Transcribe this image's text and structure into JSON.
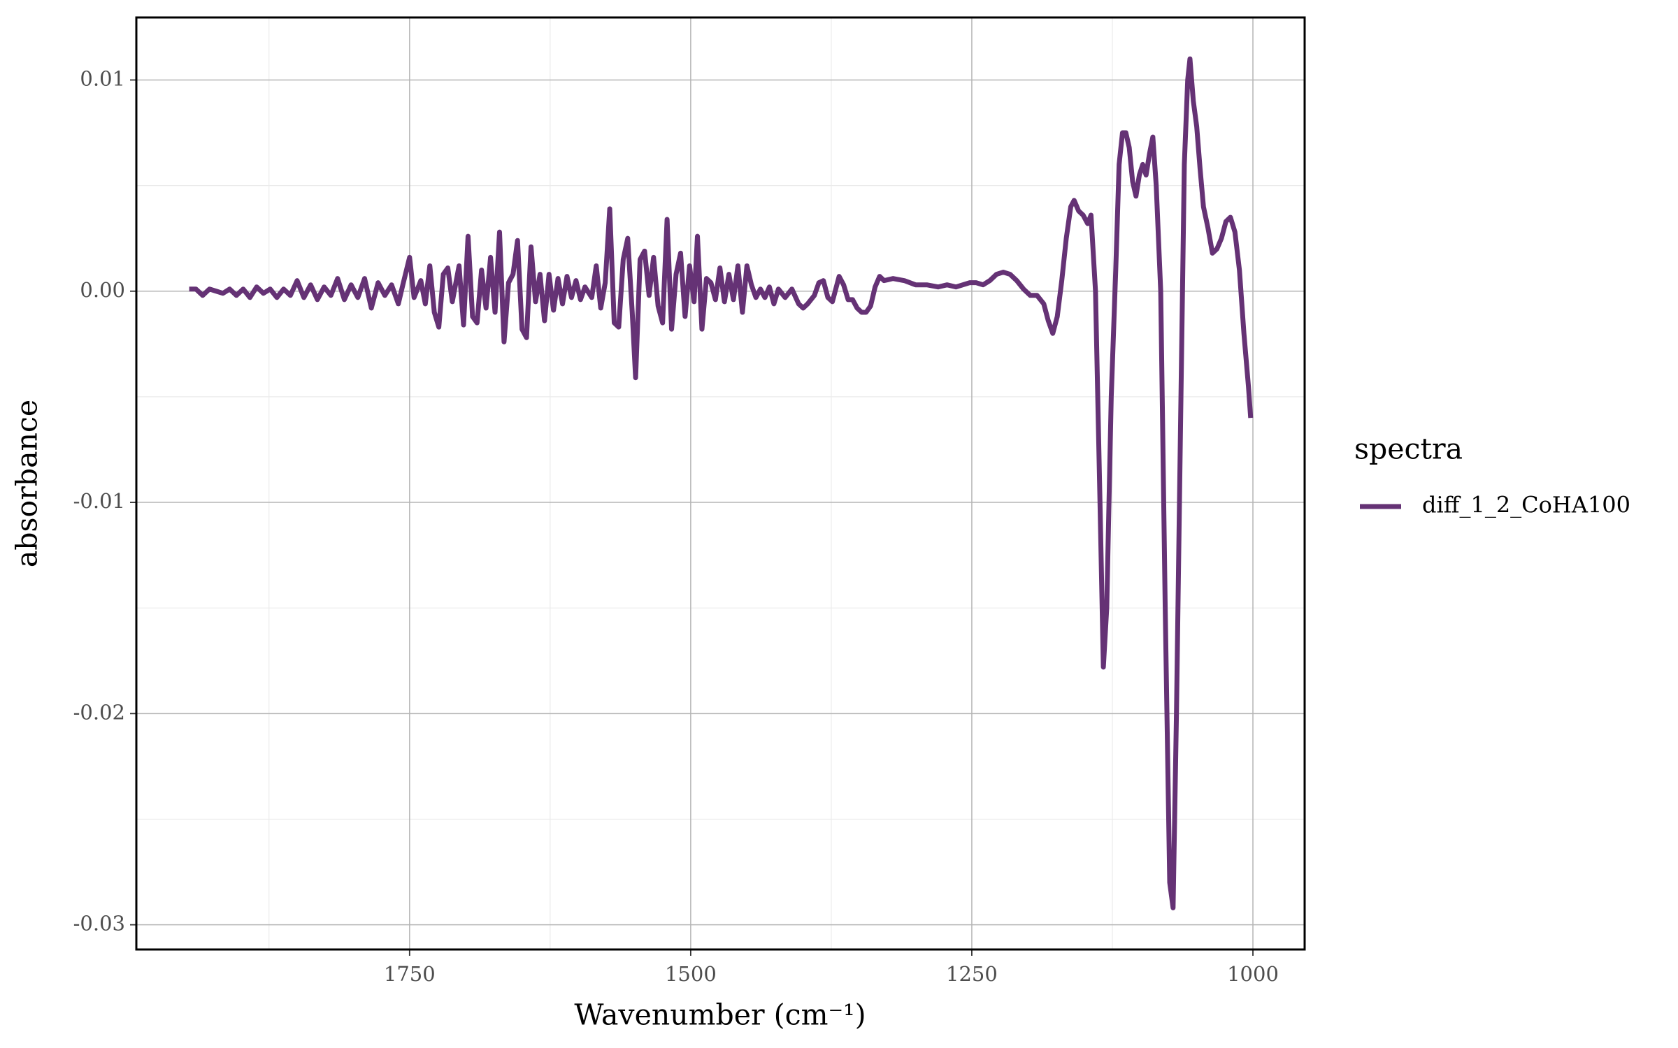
{
  "chart_data": {
    "type": "line",
    "xlabel": "Wavenumber (cm⁻¹)",
    "ylabel": "absorbance",
    "legend_title": "spectra",
    "legend_position": "right",
    "grid": true,
    "xlim": [
      1993,
      954
    ],
    "ylim": [
      -0.03117,
      0.01296
    ],
    "xticks": [
      1750,
      1500,
      1250,
      1000
    ],
    "yticks": [
      0.01,
      {
        "value": 0,
        "label": "0.00"
      },
      -0.01,
      -0.02,
      -0.03
    ],
    "x": [
      1946,
      1940,
      1934,
      1928,
      1922,
      1916,
      1910,
      1904,
      1898,
      1892,
      1886,
      1880,
      1874,
      1868,
      1862,
      1856,
      1850,
      1844,
      1838,
      1832,
      1826,
      1820,
      1814,
      1808,
      1802,
      1796,
      1790,
      1784,
      1778,
      1772,
      1766,
      1760,
      1756,
      1750,
      1746,
      1740,
      1736,
      1732,
      1728,
      1724,
      1720,
      1716,
      1712,
      1706,
      1702,
      1698,
      1694,
      1690,
      1686,
      1682,
      1678,
      1674,
      1670,
      1666,
      1662,
      1658,
      1654,
      1650,
      1646,
      1642,
      1638,
      1634,
      1630,
      1626,
      1622,
      1618,
      1614,
      1610,
      1606,
      1602,
      1598,
      1594,
      1588,
      1584,
      1580,
      1576,
      1572,
      1568,
      1564,
      1560,
      1556,
      1552,
      1549,
      1545,
      1541,
      1537,
      1533,
      1529,
      1525,
      1521,
      1517,
      1513,
      1509,
      1505,
      1501,
      1497,
      1494,
      1490,
      1486,
      1482,
      1478,
      1474,
      1470,
      1466,
      1462,
      1458,
      1454,
      1450,
      1446,
      1442,
      1438,
      1434,
      1430,
      1426,
      1422,
      1416,
      1410,
      1404,
      1400,
      1396,
      1390,
      1386,
      1382,
      1378,
      1374,
      1368,
      1364,
      1360,
      1356,
      1352,
      1348,
      1344,
      1340,
      1336,
      1332,
      1328,
      1320,
      1310,
      1300,
      1290,
      1280,
      1272,
      1264,
      1258,
      1252,
      1246,
      1240,
      1234,
      1228,
      1222,
      1216,
      1210,
      1204,
      1198,
      1192,
      1186,
      1182,
      1178,
      1174,
      1170,
      1166,
      1162,
      1159,
      1155,
      1151,
      1147,
      1144,
      1140,
      1136,
      1133,
      1130,
      1126,
      1122,
      1119,
      1116,
      1113,
      1110,
      1107,
      1104,
      1101,
      1098,
      1095,
      1092,
      1089,
      1086,
      1082,
      1078,
      1074,
      1071,
      1068,
      1064,
      1061,
      1058,
      1056,
      1053,
      1050,
      1047,
      1044,
      1040,
      1036,
      1032,
      1028,
      1024,
      1020,
      1016,
      1012,
      1008,
      1004,
      1002
    ],
    "series": [
      {
        "name": "diff_1_2_CoHA100",
        "color": "#653275",
        "values": [
          0.0001,
          0.0001,
          -0.0002,
          0.0001,
          0,
          -0.0001,
          0.0001,
          -0.0002,
          0.0001,
          -0.0003,
          0.0002,
          -0.0001,
          0.0001,
          -0.0003,
          0.0001,
          -0.0002,
          0.0005,
          -0.0003,
          0.0003,
          -0.0004,
          0.0002,
          -0.0002,
          0.0006,
          -0.0004,
          0.0003,
          -0.0003,
          0.0006,
          -0.0008,
          0.0004,
          -0.0002,
          0.0003,
          -0.0006,
          0.0003,
          0.0016,
          -0.0003,
          0.0005,
          -0.0006,
          0.0012,
          -0.001,
          -0.0017,
          0.0008,
          0.0011,
          -0.0005,
          0.0012,
          -0.0016,
          0.0026,
          -0.0012,
          -0.0015,
          0.001,
          -0.0008,
          0.0016,
          -0.001,
          0.0028,
          -0.0024,
          0.0004,
          0.0008,
          0.0024,
          -0.0018,
          -0.0022,
          0.0021,
          -0.0005,
          0.0008,
          -0.0014,
          0.0008,
          -0.0009,
          0.0006,
          -0.0006,
          0.0007,
          -0.0003,
          0.0005,
          -0.0004,
          0.0002,
          -0.0003,
          0.0012,
          -0.0008,
          0.0004,
          0.0039,
          -0.0015,
          -0.0017,
          0.0015,
          0.0025,
          -0.001,
          -0.0041,
          0.0015,
          0.0019,
          -0.0002,
          0.0016,
          -0.0007,
          -0.0015,
          0.0034,
          -0.0018,
          0.0008,
          0.0018,
          -0.0012,
          0.0012,
          -0.0005,
          0.0026,
          -0.0018,
          0.0006,
          0.0004,
          -0.0004,
          0.0011,
          -0.0005,
          0.0008,
          -0.0004,
          0.0012,
          -0.001,
          0.0012,
          0.0003,
          -0.0003,
          0.0001,
          -0.0003,
          0.0002,
          -0.0006,
          0.0001,
          -0.0003,
          0.0001,
          -0.0006,
          -0.0008,
          -0.0006,
          -0.0002,
          0.0004,
          0.0005,
          -0.0003,
          -0.0005,
          0.0007,
          0.0003,
          -0.0004,
          -0.0004,
          -0.0008,
          -0.001,
          -0.001,
          -0.0007,
          0.0002,
          0.0007,
          0.0005,
          0.0006,
          0.0005,
          0.0003,
          0.0003,
          0.0002,
          0.0003,
          0.0002,
          0.0003,
          0.0004,
          0.0004,
          0.0003,
          0.0005,
          0.0008,
          0.0009,
          0.0008,
          0.0005,
          0.0001,
          -0.0002,
          -0.0002,
          -0.0006,
          -0.0014,
          -0.002,
          -0.0012,
          0.0005,
          0.0025,
          0.004,
          0.0043,
          0.0038,
          0.0036,
          0.0032,
          0.0036,
          0,
          -0.01,
          -0.0178,
          -0.015,
          -0.005,
          0.001,
          0.006,
          0.0075,
          0.0075,
          0.0068,
          0.0052,
          0.0045,
          0.0055,
          0.006,
          0.0055,
          0.0065,
          0.0073,
          0.005,
          0,
          -0.015,
          -0.028,
          -0.0292,
          -0.02,
          -0.005,
          0.006,
          0.01,
          0.011,
          0.009,
          0.0078,
          0.0058,
          0.004,
          0.003,
          0.0018,
          0.002,
          0.0025,
          0.0033,
          0.0035,
          0.0028,
          0.001,
          -0.002,
          -0.0045,
          -0.006
        ]
      }
    ]
  }
}
